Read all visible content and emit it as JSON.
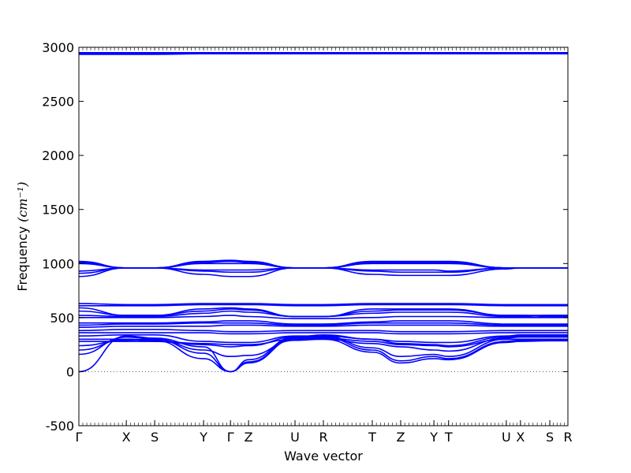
{
  "chart_data": {
    "type": "line",
    "title": "",
    "xlabel": "Wave vector",
    "ylabel": "Frequency",
    "ylabel_unit": "(cm⁻¹)",
    "ylim": [
      -500,
      3000
    ],
    "yticks": [
      -500,
      0,
      500,
      1000,
      1500,
      2000,
      2500,
      3000
    ],
    "xlim": [
      0,
      1
    ],
    "grid": false,
    "legend": "none",
    "line_color": "#0000ff",
    "zero_line": {
      "y": 0,
      "style": "dotted"
    },
    "high_points": [
      {
        "label": "Γ",
        "x": 0.0
      },
      {
        "label": "X",
        "x": 0.097
      },
      {
        "label": "S",
        "x": 0.155
      },
      {
        "label": "Y",
        "x": 0.255
      },
      {
        "label": "Γ",
        "x": 0.31
      },
      {
        "label": "Z",
        "x": 0.347
      },
      {
        "label": "U",
        "x": 0.442
      },
      {
        "label": "R",
        "x": 0.5
      },
      {
        "label": "T",
        "x": 0.6
      },
      {
        "label": "Z",
        "x": 0.658
      },
      {
        "label": "Y",
        "x": 0.726
      },
      {
        "label": "T",
        "x": 0.756
      },
      {
        "label": "U",
        "x": 0.874
      },
      {
        "label": "X",
        "x": 0.903
      },
      {
        "label": "S",
        "x": 0.963
      },
      {
        "label": "R",
        "x": 1.0
      }
    ],
    "series": [
      {
        "values": [
          0,
          330,
          310,
          230,
          0,
          90,
          310,
          320,
          200,
          100,
          140,
          120,
          280,
          290,
          290,
          290
        ]
      },
      {
        "values": [
          160,
          320,
          300,
          170,
          0,
          80,
          300,
          300,
          180,
          80,
          120,
          110,
          270,
          280,
          285,
          285
        ]
      },
      {
        "values": [
          200,
          300,
          290,
          120,
          0,
          110,
          320,
          330,
          220,
          140,
          160,
          140,
          300,
          300,
          300,
          300
        ]
      },
      {
        "values": [
          240,
          290,
          300,
          200,
          140,
          150,
          290,
          300,
          260,
          230,
          200,
          190,
          310,
          320,
          320,
          320
        ]
      },
      {
        "values": [
          280,
          280,
          280,
          250,
          230,
          240,
          320,
          340,
          300,
          260,
          250,
          240,
          320,
          330,
          330,
          330
        ]
      },
      {
        "values": [
          300,
          300,
          280,
          260,
          250,
          250,
          300,
          310,
          280,
          250,
          240,
          230,
          300,
          300,
          300,
          300
        ]
      },
      {
        "values": [
          330,
          340,
          340,
          280,
          270,
          270,
          330,
          330,
          300,
          280,
          270,
          270,
          330,
          340,
          340,
          340
        ]
      },
      {
        "values": [
          360,
          360,
          360,
          360,
          350,
          350,
          360,
          360,
          360,
          350,
          350,
          350,
          360,
          360,
          360,
          360
        ]
      },
      {
        "values": [
          380,
          390,
          390,
          380,
          370,
          370,
          380,
          380,
          380,
          370,
          370,
          370,
          380,
          380,
          380,
          380
        ]
      },
      {
        "values": [
          410,
          420,
          420,
          420,
          430,
          430,
          420,
          420,
          430,
          430,
          430,
          430,
          420,
          420,
          420,
          420
        ]
      },
      {
        "values": [
          430,
          440,
          440,
          450,
          450,
          450,
          430,
          430,
          450,
          450,
          450,
          450,
          430,
          430,
          430,
          430
        ]
      },
      {
        "values": [
          450,
          450,
          450,
          460,
          470,
          470,
          440,
          440,
          460,
          470,
          470,
          470,
          440,
          440,
          440,
          440
        ]
      },
      {
        "values": [
          500,
          500,
          500,
          510,
          520,
          510,
          490,
          490,
          500,
          510,
          510,
          510,
          500,
          500,
          500,
          500
        ]
      },
      {
        "values": [
          520,
          510,
          510,
          540,
          560,
          550,
          510,
          510,
          540,
          550,
          550,
          550,
          510,
          510,
          520,
          520
        ]
      },
      {
        "values": [
          560,
          520,
          520,
          560,
          580,
          570,
          510,
          510,
          560,
          570,
          570,
          570,
          520,
          520,
          520,
          520
        ]
      },
      {
        "values": [
          590,
          520,
          520,
          580,
          590,
          580,
          510,
          510,
          580,
          580,
          580,
          580,
          520,
          520,
          510,
          510
        ]
      },
      {
        "values": [
          610,
          610,
          610,
          620,
          620,
          620,
          610,
          610,
          620,
          620,
          620,
          620,
          610,
          610,
          610,
          610
        ]
      },
      {
        "values": [
          630,
          620,
          620,
          630,
          630,
          630,
          620,
          620,
          630,
          630,
          630,
          630,
          620,
          620,
          620,
          620
        ]
      },
      {
        "values": [
          880,
          960,
          960,
          900,
          880,
          880,
          960,
          960,
          900,
          890,
          890,
          890,
          950,
          960,
          960,
          960
        ]
      },
      {
        "values": [
          910,
          960,
          960,
          930,
          920,
          920,
          960,
          960,
          930,
          920,
          920,
          920,
          960,
          960,
          960,
          960
        ]
      },
      {
        "values": [
          930,
          960,
          960,
          940,
          940,
          940,
          960,
          960,
          940,
          940,
          940,
          930,
          960,
          960,
          960,
          960
        ]
      },
      {
        "values": [
          1000,
          960,
          960,
          1000,
          1000,
          1000,
          960,
          960,
          1000,
          1000,
          1000,
          1000,
          960,
          960,
          960,
          960
        ]
      },
      {
        "values": [
          1010,
          960,
          960,
          1010,
          1020,
          1010,
          960,
          960,
          1010,
          1010,
          1010,
          1010,
          960,
          960,
          960,
          960
        ]
      },
      {
        "values": [
          1020,
          960,
          960,
          1020,
          1030,
          1020,
          960,
          960,
          1020,
          1020,
          1020,
          1020,
          960,
          960,
          960,
          960
        ]
      },
      {
        "values": [
          2935,
          2935,
          2935,
          2940,
          2940,
          2940,
          2940,
          2940,
          2940,
          2940,
          2940,
          2940,
          2940,
          2940,
          2940,
          2940
        ]
      },
      {
        "values": [
          2945,
          2945,
          2945,
          2945,
          2945,
          2945,
          2945,
          2945,
          2945,
          2945,
          2945,
          2945,
          2945,
          2945,
          2945,
          2945
        ]
      },
      {
        "values": [
          2950,
          2950,
          2950,
          2950,
          2950,
          2950,
          2950,
          2950,
          2950,
          2950,
          2950,
          2950,
          2950,
          2950,
          2950,
          2950
        ]
      }
    ]
  }
}
